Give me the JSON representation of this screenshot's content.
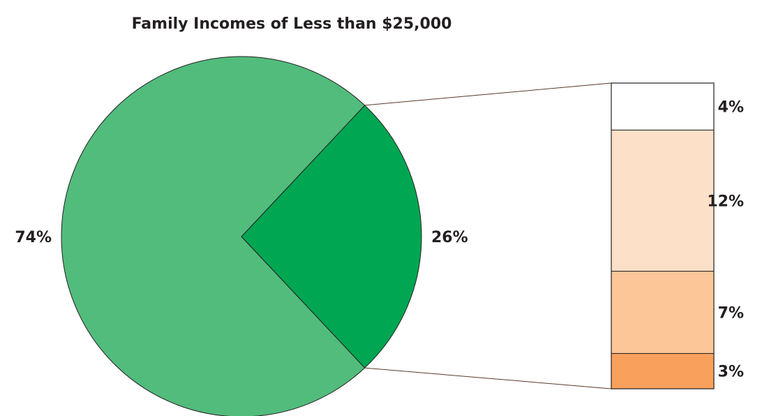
{
  "chart_data": {
    "type": "pie",
    "variant": "bar-of-pie",
    "title": "Family Incomes of Less than $25,000",
    "pie": {
      "slices": [
        {
          "value": 74,
          "label": "74%",
          "color": "#52bc7c"
        },
        {
          "value": 26,
          "label": "26%",
          "color": "#00a651",
          "exploded_into_bar": true
        }
      ]
    },
    "bar": {
      "segments": [
        {
          "value": 4,
          "label": "4%",
          "color": "#ffffff"
        },
        {
          "value": 12,
          "label": "12%",
          "color": "#fce0c7"
        },
        {
          "value": 7,
          "label": "7%",
          "color": "#fcc698"
        },
        {
          "value": 3,
          "label": "3%",
          "color": "#f9a05c"
        }
      ]
    },
    "colors": {
      "outline": "#231f20",
      "connector": "#5a3a2a"
    }
  }
}
